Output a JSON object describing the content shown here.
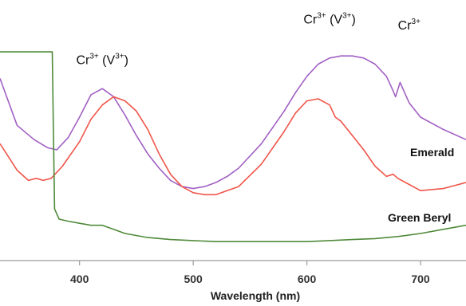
{
  "chart_data": {
    "type": "line",
    "title": "",
    "xlabel": "Wavelength (nm)",
    "ylabel": "",
    "xlim": [
      330,
      740
    ],
    "ylim": [
      0,
      1
    ],
    "xticks": [
      400,
      500,
      600,
      700
    ],
    "grid": false,
    "colors": {
      "Emerald": "#f0554a",
      "Purple": "#a160c4",
      "Green Beryl": "#4f8a3a"
    },
    "series_labels": {
      "emerald": "Emerald",
      "green_beryl": "Green Beryl"
    },
    "annotations": [
      {
        "base": "Cr",
        "sup1": "3+",
        "mid": " (V",
        "sup2": "3+",
        "end": ")",
        "x": 420,
        "y": 0.92
      },
      {
        "base": "Cr",
        "sup1": "3+",
        "mid": " (V",
        "sup2": "3+",
        "end": ")",
        "x": 620,
        "y": 1.12
      },
      {
        "base": "Cr",
        "sup1": "3+",
        "mid": "",
        "sup2": "",
        "end": "",
        "x": 690,
        "y": 1.09
      }
    ],
    "series": [
      {
        "name": "",
        "color": "#a160c4",
        "x": [
          330,
          345,
          360,
          372,
          380,
          390,
          400,
          410,
          420,
          430,
          440,
          450,
          460,
          470,
          480,
          490,
          500,
          510,
          520,
          530,
          540,
          560,
          580,
          590,
          600,
          610,
          620,
          630,
          640,
          650,
          660,
          670,
          675,
          678,
          682,
          690,
          700,
          720,
          740
        ],
        "y": [
          0.85,
          0.62,
          0.55,
          0.51,
          0.5,
          0.56,
          0.66,
          0.77,
          0.8,
          0.76,
          0.67,
          0.57,
          0.48,
          0.41,
          0.35,
          0.32,
          0.31,
          0.32,
          0.34,
          0.37,
          0.41,
          0.53,
          0.69,
          0.78,
          0.86,
          0.92,
          0.95,
          0.96,
          0.96,
          0.95,
          0.92,
          0.86,
          0.8,
          0.76,
          0.83,
          0.73,
          0.66,
          0.6,
          0.55
        ]
      },
      {
        "name": "Emerald",
        "color": "#f0554a",
        "x": [
          330,
          345,
          355,
          362,
          368,
          375,
          385,
          400,
          410,
          420,
          430,
          440,
          450,
          460,
          470,
          480,
          490,
          500,
          510,
          520,
          540,
          560,
          580,
          590,
          600,
          610,
          620,
          625,
          630,
          640,
          650,
          660,
          670,
          676,
          680,
          690,
          700,
          720,
          740
        ],
        "y": [
          0.53,
          0.4,
          0.35,
          0.36,
          0.35,
          0.36,
          0.42,
          0.54,
          0.65,
          0.72,
          0.76,
          0.74,
          0.69,
          0.6,
          0.48,
          0.38,
          0.32,
          0.29,
          0.28,
          0.28,
          0.32,
          0.43,
          0.59,
          0.68,
          0.74,
          0.75,
          0.72,
          0.66,
          0.64,
          0.57,
          0.5,
          0.42,
          0.37,
          0.38,
          0.36,
          0.33,
          0.3,
          0.31,
          0.34
        ]
      },
      {
        "name": "Green Beryl",
        "color": "#4f8a3a",
        "x": [
          330,
          376,
          377,
          378,
          382,
          390,
          400,
          410,
          420,
          430,
          440,
          460,
          480,
          500,
          520,
          540,
          560,
          580,
          600,
          620,
          640,
          660,
          680,
          700,
          720,
          740
        ],
        "y": [
          0.98,
          0.98,
          0.6,
          0.21,
          0.16,
          0.15,
          0.14,
          0.13,
          0.13,
          0.11,
          0.09,
          0.07,
          0.06,
          0.055,
          0.05,
          0.05,
          0.05,
          0.05,
          0.05,
          0.055,
          0.06,
          0.065,
          0.075,
          0.09,
          0.11,
          0.13
        ]
      }
    ]
  }
}
